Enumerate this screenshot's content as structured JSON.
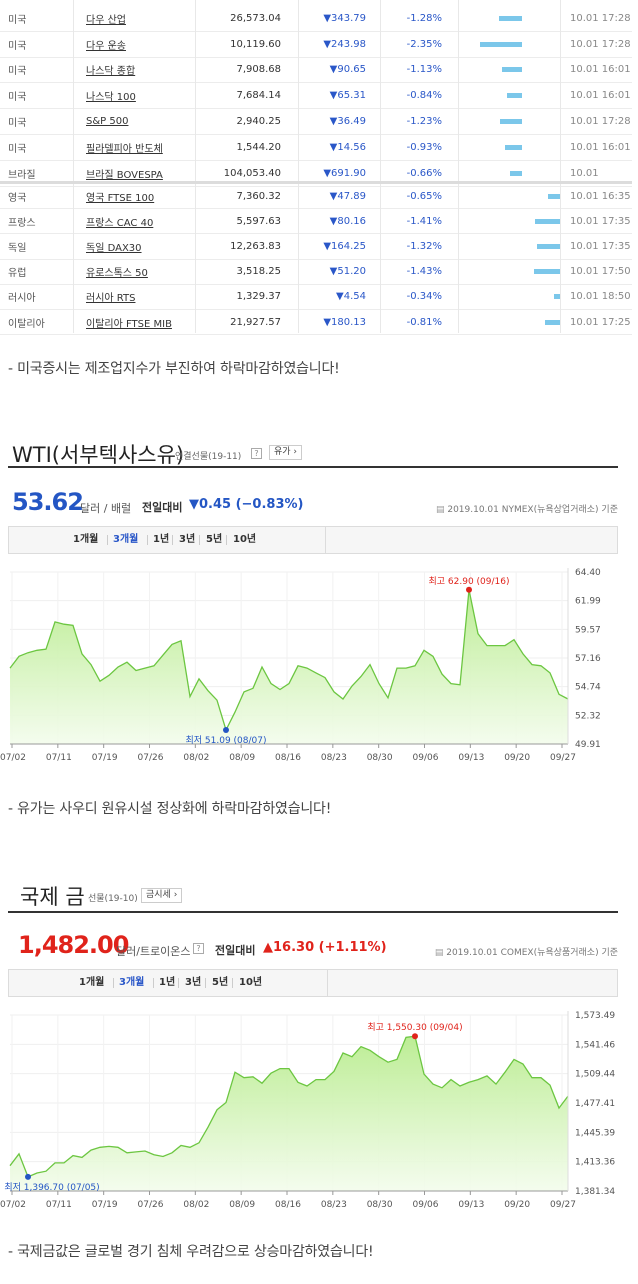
{
  "indices": [
    {
      "country": "미국",
      "name": "다우 산업",
      "value": "26,573.04",
      "change": "▼343.79",
      "pct": "-1.28%",
      "bar": 0.23,
      "time": "10.01 17:28"
    },
    {
      "country": "미국",
      "name": "다우 운송",
      "value": "10,119.60",
      "change": "▼243.98",
      "pct": "-2.35%",
      "bar": 0.42,
      "time": "10.01 17:28"
    },
    {
      "country": "미국",
      "name": "나스닥 종합",
      "value": "7,908.68",
      "change": "▼90.65",
      "pct": "-1.13%",
      "bar": 0.2,
      "time": "10.01 16:01"
    },
    {
      "country": "미국",
      "name": "나스닥 100",
      "value": "7,684.14",
      "change": "▼65.31",
      "pct": "-0.84%",
      "bar": 0.15,
      "time": "10.01 16:01"
    },
    {
      "country": "미국",
      "name": "S&P 500",
      "value": "2,940.25",
      "change": "▼36.49",
      "pct": "-1.23%",
      "bar": 0.22,
      "time": "10.01 17:28"
    },
    {
      "country": "미국",
      "name": "필라델피아 반도체",
      "value": "1,544.20",
      "change": "▼14.56",
      "pct": "-0.93%",
      "bar": 0.17,
      "time": "10.01 16:01"
    },
    {
      "country": "브라질",
      "name": "브라질 BOVESPA",
      "value": "104,053.40",
      "change": "▼691.90",
      "pct": "-0.66%",
      "bar": 0.12,
      "time": "10.01"
    },
    {
      "country": "영국",
      "name": "영국 FTSE 100",
      "value": "7,360.32",
      "change": "▼47.89",
      "pct": "-0.65%",
      "bar": 0.12,
      "time": "10.01 16:35"
    },
    {
      "country": "프랑스",
      "name": "프랑스 CAC 40",
      "value": "5,597.63",
      "change": "▼80.16",
      "pct": "-1.41%",
      "bar": 0.25,
      "time": "10.01 17:35"
    },
    {
      "country": "독일",
      "name": "독일 DAX30",
      "value": "12,263.83",
      "change": "▼164.25",
      "pct": "-1.32%",
      "bar": 0.23,
      "time": "10.01 17:35"
    },
    {
      "country": "유럽",
      "name": "유로스톡스 50",
      "value": "3,518.25",
      "change": "▼51.20",
      "pct": "-1.43%",
      "bar": 0.26,
      "time": "10.01 17:50"
    },
    {
      "country": "러시아",
      "name": "러시아 RTS",
      "value": "1,329.37",
      "change": "▼4.54",
      "pct": "-0.34%",
      "bar": 0.06,
      "time": "10.01 18:50"
    },
    {
      "country": "이탈리아",
      "name": "이탈리아 FTSE MIB",
      "value": "21,927.57",
      "change": "▼180.13",
      "pct": "-0.81%",
      "bar": 0.15,
      "time": "10.01 17:25"
    }
  ],
  "notes": {
    "us_market": "- 미국증시는 제조업지수가 부진하여 하락마감하였습니다!",
    "oil": "- 유가는 사우디 원유시설 정상화에 하락마감하였습니다!",
    "gold": "- 국제금값은 글로벌 경기 침체 우려감으로 상승마감하였습니다!"
  },
  "wti": {
    "title": "WTI(서부텍사스유)",
    "subtitle": "연결선물(19-11)",
    "help": "?",
    "button": "유가 ›",
    "price": "53.62",
    "unit": "달러 / 배럴",
    "compare_label": "전일대비",
    "compare_value": "▼0.45 (−0.83%)",
    "source": "2019.10.01  NYMEX(뉴욕상업거래소) 기준",
    "tabs": [
      "1개월",
      "3개월",
      "1년",
      "3년",
      "5년",
      "10년"
    ],
    "colors": {
      "price": "#2456c4",
      "compare": "#2456c4"
    }
  },
  "gold": {
    "title": "국제 금",
    "subtitle": "선물(19-10)",
    "button": "금시세 ›",
    "price": "1,482.00",
    "unit": "달러/트로이온스",
    "help": "?",
    "compare_label": "전일대비",
    "compare_value": "▲16.30 (+1.11%)",
    "source": "2019.10.01  COMEX(뉴욕상품거래소) 기준",
    "tabs": [
      "1개월",
      "3개월",
      "1년",
      "3년",
      "5년",
      "10년"
    ],
    "colors": {
      "price": "#e0231b",
      "compare": "#e0231b"
    }
  },
  "chart_data": [
    {
      "type": "area",
      "xlabels": [
        "07/02",
        "07/11",
        "07/19",
        "07/26",
        "08/02",
        "08/09",
        "08/16",
        "08/23",
        "08/30",
        "09/06",
        "09/13",
        "09/20",
        "09/27"
      ],
      "yticks": [
        "64.40",
        "61.99",
        "59.57",
        "57.16",
        "54.74",
        "52.32",
        "49.91"
      ],
      "ylim": [
        49.91,
        64.4
      ],
      "values": [
        56.3,
        57.3,
        57.6,
        57.8,
        57.9,
        60.2,
        60.0,
        59.9,
        57.5,
        56.6,
        55.2,
        55.7,
        56.4,
        56.8,
        56.1,
        56.3,
        56.5,
        57.4,
        58.3,
        58.6,
        53.9,
        55.4,
        54.4,
        53.6,
        51.09,
        52.6,
        54.3,
        54.6,
        56.4,
        55.0,
        54.5,
        55.0,
        56.5,
        56.3,
        55.9,
        55.5,
        54.3,
        53.7,
        54.8,
        55.6,
        56.6,
        55.0,
        53.8,
        56.3,
        56.3,
        56.5,
        57.8,
        57.3,
        55.8,
        55.0,
        54.9,
        62.9,
        59.2,
        58.2,
        58.2,
        58.2,
        58.7,
        57.5,
        56.6,
        56.5,
        55.9,
        54.1,
        53.7
      ],
      "annotations": {
        "high": "최고 62.90 (09/16)",
        "low": "최저 51.09 (08/07)"
      },
      "high_index": 51,
      "low_index": 24
    },
    {
      "type": "area",
      "xlabels": [
        "07/02",
        "07/11",
        "07/19",
        "07/26",
        "08/02",
        "08/09",
        "08/16",
        "08/23",
        "08/30",
        "09/06",
        "09/13",
        "09/20",
        "09/27"
      ],
      "yticks": [
        "1,573.49",
        "1,541.46",
        "1,509.44",
        "1,477.41",
        "1,445.39",
        "1,413.36",
        "1,381.34"
      ],
      "ylim": [
        1381.34,
        1573.49
      ],
      "values": [
        1409,
        1422,
        1396.7,
        1401,
        1403,
        1412,
        1412,
        1420,
        1418,
        1426,
        1429,
        1430,
        1429,
        1423,
        1424,
        1425,
        1421,
        1419,
        1423,
        1431,
        1429,
        1434,
        1451,
        1470,
        1478,
        1511,
        1505,
        1506,
        1499,
        1510,
        1515,
        1515,
        1500,
        1496,
        1503,
        1503,
        1512,
        1532,
        1528,
        1539,
        1535,
        1528,
        1522,
        1525,
        1549,
        1550.3,
        1509,
        1498,
        1494,
        1503,
        1496,
        1500,
        1503,
        1507,
        1498,
        1511,
        1525,
        1520,
        1505,
        1505,
        1497,
        1472,
        1485
      ],
      "annotations": {
        "high": "최고 1,550.30 (09/04)",
        "low": "최저 1,396.70 (07/05)"
      },
      "high_index": 45,
      "low_index": 2
    }
  ]
}
